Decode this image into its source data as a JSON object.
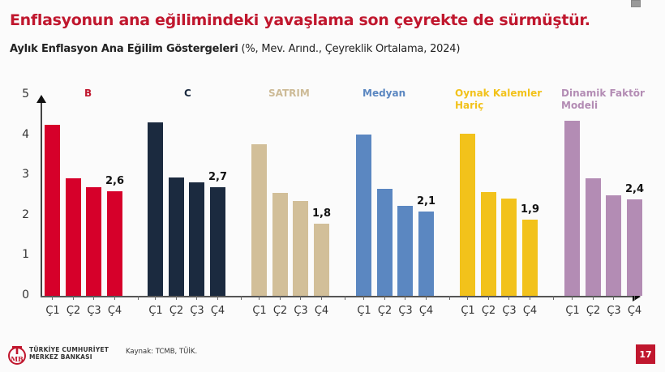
{
  "header": {
    "title": "Enflasyonun ana eğilimindeki yavaşlama son çeyrekte de sürmüştür.",
    "subtitle_bold": "Aylık Enflasyon Ana Eğilim Göstergeleri",
    "subtitle_rest": " (%, Mev. Arınd., Çeyreklik Ortalama, 2024)"
  },
  "chart_data": {
    "type": "bar",
    "title": "Aylık Enflasyon Ana Eğilim Göstergeleri (%, Mev. Arınd., Çeyreklik Ortalama, 2024)",
    "xlabel": "",
    "ylabel": "",
    "ylim": [
      0,
      5
    ],
    "yticks": [
      "0",
      "1",
      "2",
      "3",
      "4",
      "5"
    ],
    "grid": false,
    "categories": [
      "Ç1",
      "Ç2",
      "Ç3",
      "Ç4"
    ],
    "series": [
      {
        "name": "B",
        "color": "#d6002a",
        "values": [
          4.25,
          2.92,
          2.7,
          2.6
        ],
        "last_label": "2,6"
      },
      {
        "name": "C",
        "color": "#1b2a3f",
        "values": [
          4.31,
          2.94,
          2.82,
          2.7
        ],
        "last_label": "2,7"
      },
      {
        "name": "SATRIM",
        "color": "#d2bf99",
        "values": [
          3.77,
          2.56,
          2.36,
          1.8
        ],
        "last_label": "1,8"
      },
      {
        "name": "Medyan",
        "color": "#5b87c1",
        "values": [
          4.01,
          2.66,
          2.24,
          2.1
        ],
        "last_label": "2,1"
      },
      {
        "name": "Oynak Kalemler Hariç",
        "color": "#f2c21b",
        "values": [
          4.03,
          2.58,
          2.42,
          1.9
        ],
        "last_label": "1,9"
      },
      {
        "name": "Dinamik Faktör Modeli",
        "color": "#b38cb4",
        "values": [
          4.35,
          2.92,
          2.5,
          2.4
        ],
        "last_label": "2,4"
      }
    ],
    "group_label_colors": [
      "#c0172e",
      "#1b2a3f",
      "#cdbb97",
      "#5b87c1",
      "#f2c21b",
      "#b38cb4"
    ],
    "group_label_lines": [
      [
        "B"
      ],
      [
        "C"
      ],
      [
        "SATRIM"
      ],
      [
        "Medyan"
      ],
      [
        "Oynak Kalemler",
        "Hariç"
      ],
      [
        "Dinamik Faktör",
        "Modeli"
      ]
    ]
  },
  "footer": {
    "logo_line1": "TÜRKİYE CUMHURİYET",
    "logo_line2": "MERKEZ BANKASI",
    "logo_mark": "TCMB",
    "source": "Kaynak: TCMB, TÜİK.",
    "page_number": "17"
  },
  "colors": {
    "title": "#c0172e",
    "page_badge": "#c0172e"
  }
}
